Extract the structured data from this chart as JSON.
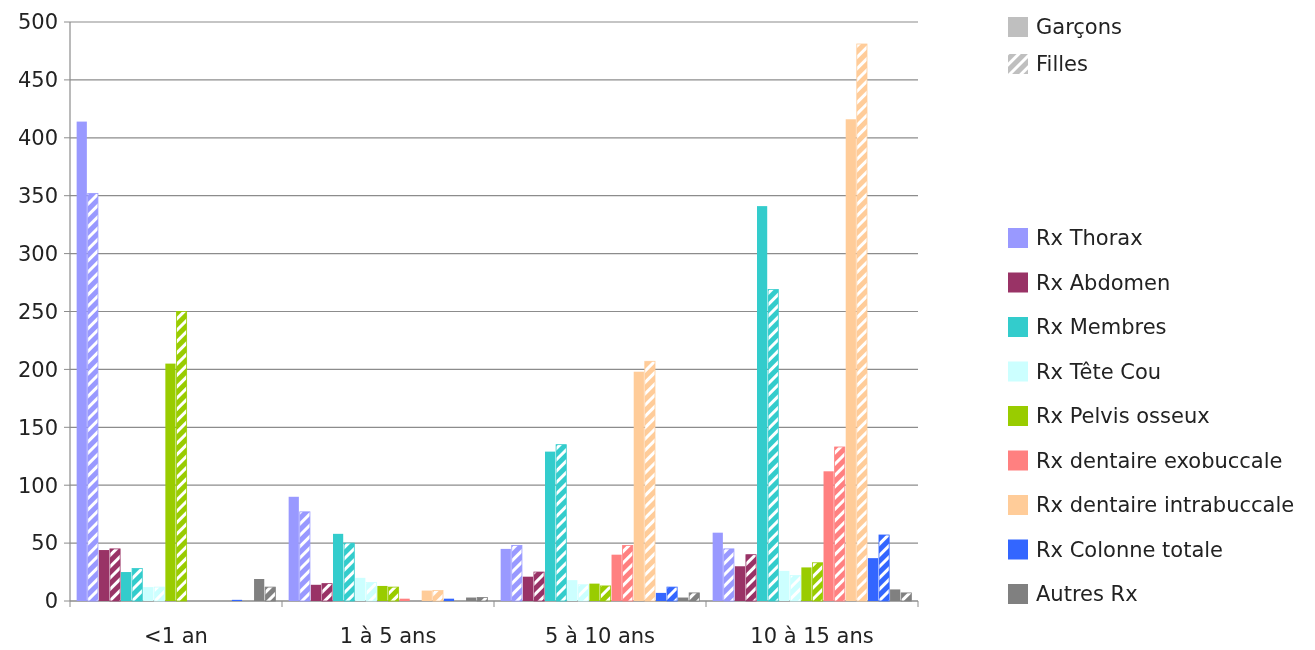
{
  "chart_data": {
    "type": "bar",
    "categories": [
      "<1 an",
      "1 à 5 ans",
      "5 à 10 ans",
      "10 à 15 ans"
    ],
    "ylim": [
      0,
      500
    ],
    "yticks": [
      0,
      50,
      100,
      150,
      200,
      250,
      300,
      350,
      400,
      450,
      500
    ],
    "grid": "y",
    "legend": "right",
    "series": [
      {
        "name": "Garçons",
        "color": "#bfbfbf",
        "values": [
          null,
          null,
          null,
          null
        ]
      },
      {
        "name": "Filles",
        "color": "#bfbfbf",
        "values": [
          null,
          null,
          null,
          null
        ]
      },
      {
        "name": "Rx Thorax",
        "color": "#9999ff",
        "values": [
          414,
          90,
          45,
          59
        ]
      },
      {
        "color": "#9999ff",
        "values": [
          352,
          77,
          48,
          45
        ]
      },
      {
        "name": "Rx Abdomen",
        "color": "#993366",
        "values": [
          44,
          14,
          21,
          30
        ]
      },
      {
        "color": "#993366",
        "values": [
          45,
          15,
          25,
          40
        ]
      },
      {
        "name": "Rx Membres",
        "color": "#33cccc",
        "values": [
          25,
          58,
          129,
          341
        ]
      },
      {
        "color": "#33cccc",
        "values": [
          28,
          50,
          135,
          269
        ]
      },
      {
        "name": "Rx Tête Cou",
        "color": "#ccffff",
        "values": [
          12,
          20,
          18,
          26
        ]
      },
      {
        "color": "#ccffff",
        "values": [
          12,
          16,
          14,
          22
        ]
      },
      {
        "name": "Rx Pelvis osseux",
        "color": "#99cc00",
        "values": [
          205,
          13,
          15,
          29
        ]
      },
      {
        "color": "#99cc00",
        "values": [
          250,
          12,
          13,
          33
        ]
      },
      {
        "name": "Rx dentaire exobuccale",
        "color": "#ff8080",
        "values": [
          0,
          2,
          40,
          112
        ]
      },
      {
        "color": "#ff8080",
        "values": [
          0,
          0,
          48,
          133
        ]
      },
      {
        "name": "Rx dentaire intrabuccale",
        "color": "#ffcc99",
        "values": [
          0,
          9,
          198,
          416
        ]
      },
      {
        "color": "#ffcc99",
        "values": [
          0,
          9,
          207,
          481
        ]
      },
      {
        "name": "Rx Colonne totale",
        "color": "#3366ff",
        "values": [
          1,
          2,
          7,
          37
        ]
      },
      {
        "color": "#3366ff",
        "values": [
          0,
          0,
          12,
          57
        ]
      },
      {
        "name": "Autres Rx",
        "color": "#808080",
        "values": [
          19,
          3,
          3,
          10
        ]
      },
      {
        "color": "#808080",
        "values": [
          12,
          3,
          7,
          7
        ]
      }
    ]
  }
}
